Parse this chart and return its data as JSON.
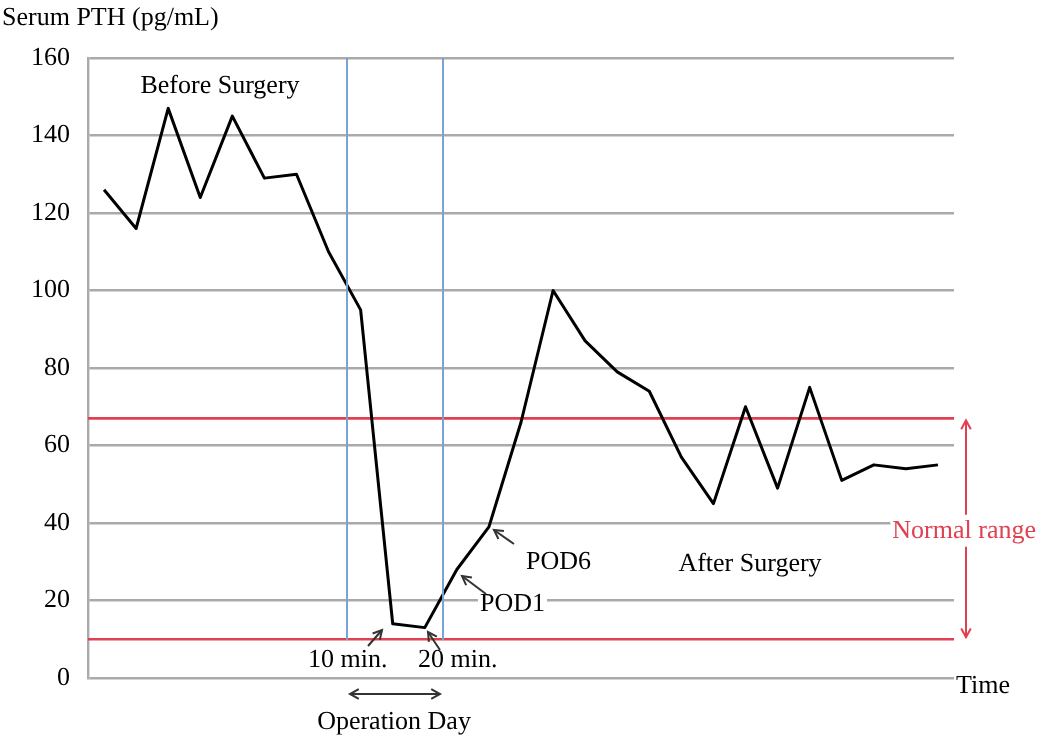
{
  "chart_data": {
    "type": "line",
    "ylabel": "Serum PTH (pg/mL)",
    "xlabel": "Time",
    "categories": [
      null,
      null,
      null,
      null,
      null,
      null,
      null,
      null,
      null,
      null,
      null,
      null,
      null,
      null,
      null,
      null,
      null,
      null,
      null,
      null,
      null,
      null,
      null,
      null,
      null,
      null,
      null
    ],
    "values": [
      126,
      116,
      147,
      124,
      145,
      129,
      130,
      110,
      95,
      14,
      13,
      28,
      39,
      66,
      100,
      87,
      79,
      74,
      57,
      45,
      70,
      49,
      75,
      51,
      55,
      54,
      55
    ],
    "color": "#000000",
    "marker": "none",
    "line_style": "solid",
    "ylim": [
      0,
      160
    ],
    "yticks": [
      0,
      20,
      40,
      60,
      80,
      100,
      120,
      140,
      160
    ],
    "tick_labels": "y",
    "grid": "y",
    "legend": false,
    "ref_lines": [
      {
        "axis": "y",
        "value": 10,
        "label": null,
        "color": "#e0404f"
      },
      {
        "axis": "y",
        "value": 67,
        "label": null,
        "color": "#e0404f"
      }
    ],
    "annotations": [
      "Before Surgery",
      "After Surgery",
      "Operation Day",
      "10 min.",
      "20 min.",
      "POD1",
      "POD6",
      "Normal range"
    ]
  }
}
